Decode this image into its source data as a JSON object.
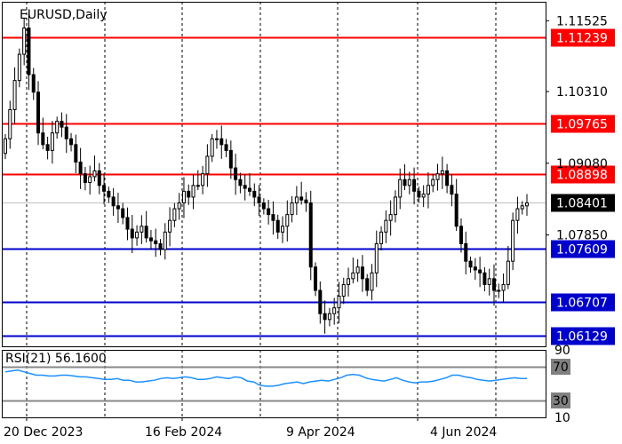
{
  "chart_data": {
    "type": "candlestick",
    "title": "EURUSD,Daily",
    "price_axis": {
      "ylim": [
        1.0594,
        1.1185
      ],
      "tick_labels": [
        "1.11525",
        "1.10310",
        "1.09080",
        "1.07850"
      ],
      "tick_values": [
        1.11525,
        1.1031,
        1.0908,
        1.0785
      ]
    },
    "x_tick_labels": [
      "20 Dec 2023",
      "16 Feb 2024",
      "9 Apr 2024",
      "4 Jun 2024"
    ],
    "levels": [
      {
        "label": "1.11239",
        "value": 1.11239,
        "color": "#ff0000"
      },
      {
        "label": "1.09765",
        "value": 1.09765,
        "color": "#ff0000"
      },
      {
        "label": "1.08898",
        "value": 1.08898,
        "color": "#ff0000"
      },
      {
        "label": "1.07609",
        "value": 1.07609,
        "color": "#0000cc"
      },
      {
        "label": "1.06707",
        "value": 1.06707,
        "color": "#0000cc"
      },
      {
        "label": "1.06129",
        "value": 1.06129,
        "color": "#0000cc"
      }
    ],
    "current_price": {
      "label": "1.08401",
      "value": 1.08401
    },
    "closes": [
      1.095,
      1.1,
      1.105,
      1.1095,
      1.114,
      1.106,
      1.103,
      1.096,
      1.094,
      1.093,
      1.096,
      1.098,
      1.097,
      1.095,
      1.094,
      1.091,
      1.089,
      1.0875,
      1.0885,
      1.0895,
      1.087,
      1.086,
      1.085,
      1.0835,
      1.083,
      1.0815,
      1.0795,
      1.078,
      1.079,
      1.08,
      1.078,
      1.0775,
      1.077,
      1.076,
      1.079,
      1.081,
      1.083,
      1.084,
      1.086,
      1.085,
      1.087,
      1.087,
      1.089,
      1.092,
      1.095,
      1.095,
      1.094,
      1.093,
      1.09,
      1.088,
      1.087,
      1.0865,
      1.086,
      1.085,
      1.084,
      1.083,
      1.082,
      1.081,
      1.079,
      1.08,
      1.082,
      1.084,
      1.085,
      1.0845,
      1.084,
      1.073,
      1.069,
      1.065,
      1.064,
      1.065,
      1.066,
      1.068,
      1.07,
      1.071,
      1.072,
      1.073,
      1.071,
      1.069,
      1.072,
      1.077,
      1.079,
      1.081,
      1.082,
      1.085,
      1.088,
      1.087,
      1.088,
      1.086,
      1.085,
      1.0855,
      1.087,
      1.088,
      1.089,
      1.0895,
      1.087,
      1.0855,
      1.08,
      1.077,
      1.074,
      1.073,
      1.0725,
      1.072,
      1.07,
      1.071,
      1.069,
      1.069,
      1.07,
      1.074,
      1.081,
      1.083,
      1.0835,
      1.084
    ],
    "rsi": {
      "label": "RSI(21) 56.1600",
      "period": 21,
      "current": 56.16,
      "ylim": [
        10,
        90
      ],
      "levels": [
        70,
        30
      ],
      "tick_labels": [
        "90",
        "70",
        "30",
        "10"
      ],
      "values": [
        64,
        65,
        66,
        64,
        62,
        60,
        60,
        59,
        59,
        60,
        60,
        59,
        58,
        58,
        57,
        56,
        55,
        55,
        56,
        54,
        54,
        52,
        52,
        53,
        54,
        56,
        57,
        56,
        57,
        58,
        57,
        55,
        55,
        56,
        58,
        57,
        56,
        58,
        57,
        53,
        52,
        48,
        47,
        47,
        48,
        50,
        51,
        52,
        50,
        52,
        53,
        54,
        53,
        55,
        57,
        60,
        61,
        60,
        57,
        55,
        54,
        53,
        55,
        57,
        54,
        52,
        51,
        52,
        52,
        53,
        55,
        57,
        60,
        60,
        58,
        57,
        55,
        54,
        53,
        54,
        55,
        56,
        57,
        56,
        56
      ]
    }
  }
}
